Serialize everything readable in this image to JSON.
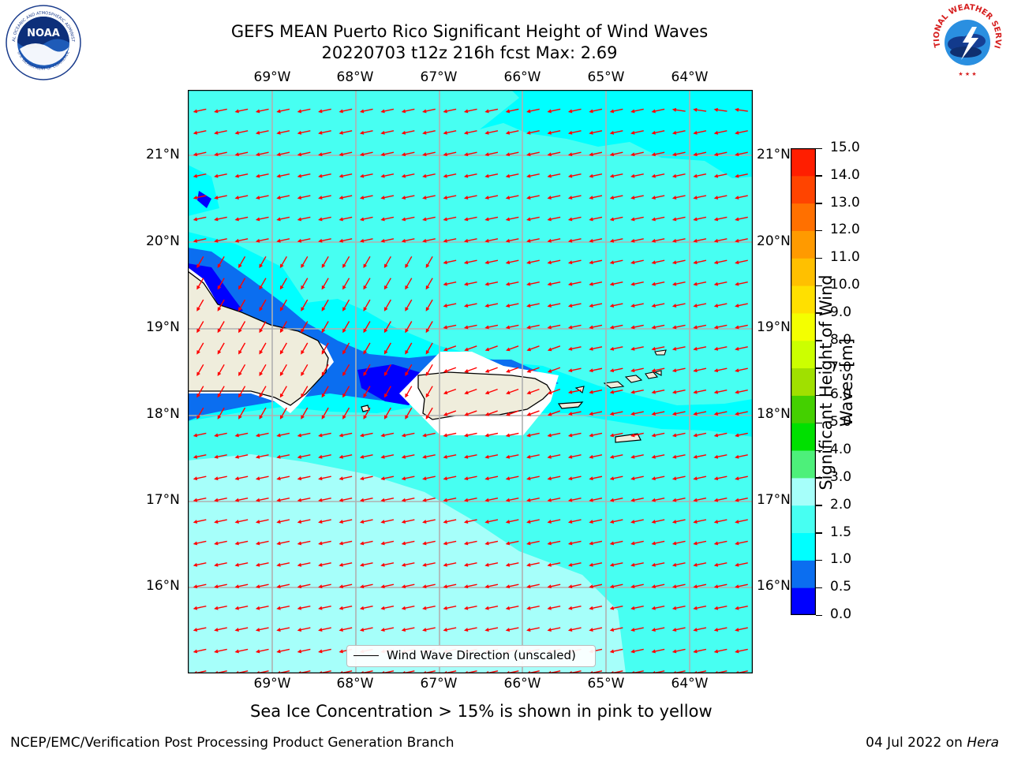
{
  "title": {
    "line1": "GEFS MEAN Puerto Rico Significant Height of Wind Waves",
    "line2": "20220703 t12z 216h fcst   Max: 2.69"
  },
  "logos": {
    "noaa": {
      "icon": "noaa-logo",
      "ring_text": "NATIONAL OCEANIC AND ATMOSPHERIC ADMINISTRATION",
      "ring_text_bottom": "U.S. DEPARTMENT OF COMMERCE",
      "center": "NOAA"
    },
    "nws": {
      "icon": "nws-logo",
      "ring_text": "NATIONAL WEATHER SERVICE"
    }
  },
  "map": {
    "longitude_labels": [
      "69°W",
      "68°W",
      "67°W",
      "66°W",
      "65°W",
      "64°W"
    ],
    "latitude_labels": [
      "21°N",
      "20°N",
      "19°N",
      "18°N",
      "17°N",
      "16°N"
    ],
    "legend": "Wind Wave Direction (unscaled)",
    "arrow_color": "#ff0000",
    "land_color": "#efeddc",
    "grid": true
  },
  "colorbar": {
    "label": "Significant Height of Wind Waves [m]",
    "tick_labels": [
      "0.0",
      "0.5",
      "1.0",
      "1.5",
      "2.0",
      "3.0",
      "4.0",
      "5.0",
      "6.0",
      "7.0",
      "8.0",
      "9.0",
      "10.0",
      "11.0",
      "12.0",
      "13.0",
      "14.0",
      "15.0"
    ],
    "colors": [
      "#0000ff",
      "#0b6ef0",
      "#00ffff",
      "#47fff2",
      "#a6fffa",
      "#4df07a",
      "#00e000",
      "#44d000",
      "#a0e000",
      "#ccff00",
      "#f4ff00",
      "#ffe000",
      "#ffc000",
      "#ff9a00",
      "#ff7000",
      "#ff4400",
      "#ff1e00"
    ]
  },
  "sea_ice_note": "Sea Ice Concentration > 15% is shown in pink to yellow",
  "footer": {
    "left": "NCEP/EMC/Verification Post Processing Product Generation Branch",
    "right_date": "04 Jul 2022 on ",
    "right_host": "Hera"
  }
}
